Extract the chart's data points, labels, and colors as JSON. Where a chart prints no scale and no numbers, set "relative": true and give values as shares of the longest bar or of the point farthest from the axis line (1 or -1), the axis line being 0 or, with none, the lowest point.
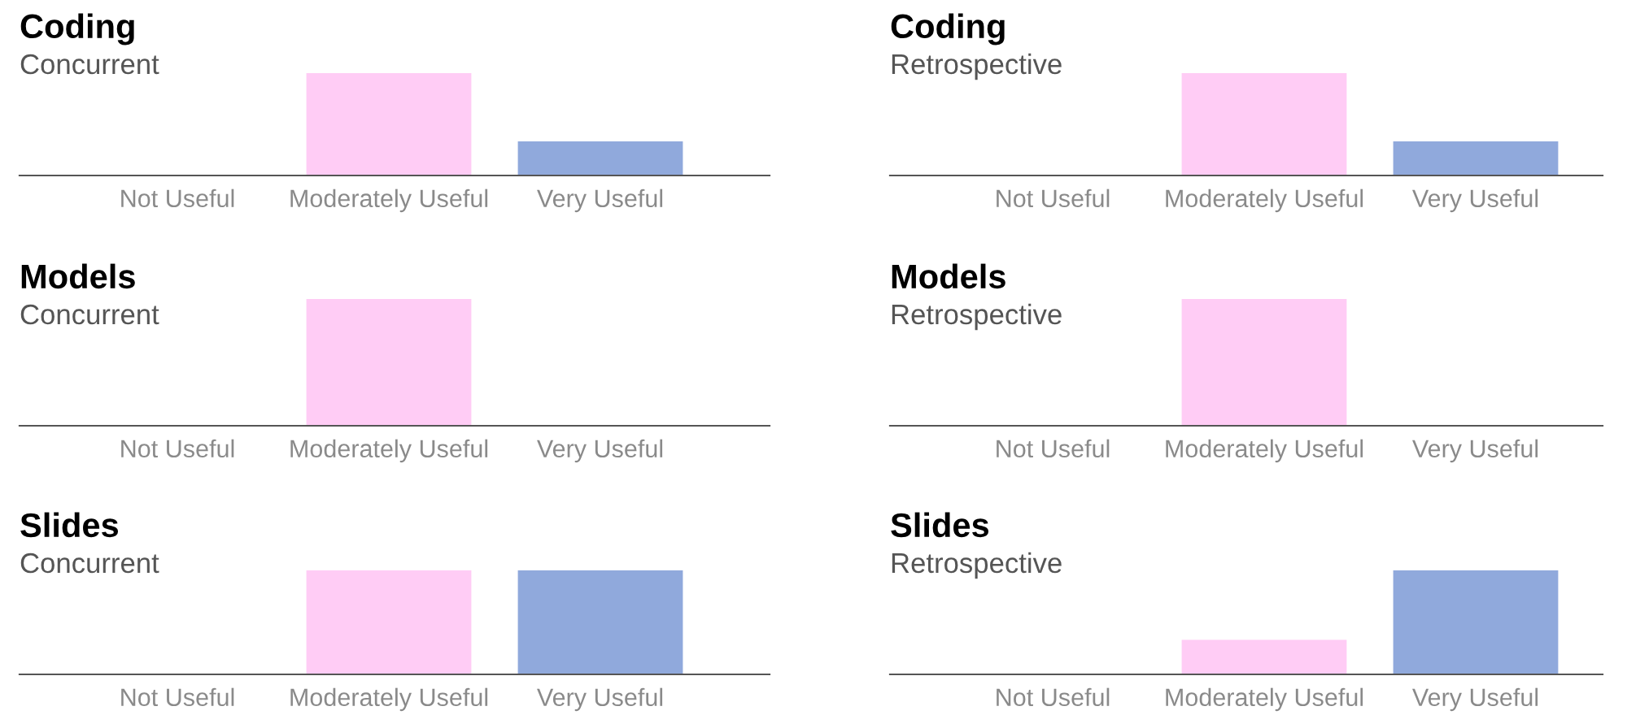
{
  "chart_data": [
    {
      "type": "bar",
      "title": "Coding",
      "subtitle": "Concurrent",
      "categories": [
        "Not Useful",
        "Moderately Useful",
        "Very Useful"
      ],
      "values": [
        null,
        1,
        0.333
      ],
      "colors": [
        "#ffccf5",
        "#ffccf5",
        "#90a9dc"
      ],
      "relative": true
    },
    {
      "type": "bar",
      "title": "Coding",
      "subtitle": "Retrospective",
      "categories": [
        "Not Useful",
        "Moderately Useful",
        "Very Useful"
      ],
      "values": [
        null,
        1,
        0.333
      ],
      "colors": [
        "#ffccf5",
        "#ffccf5",
        "#90a9dc"
      ],
      "relative": true
    },
    {
      "type": "bar",
      "title": "Models",
      "subtitle": "Concurrent",
      "categories": [
        "Not Useful",
        "Moderately Useful",
        "Very Useful"
      ],
      "values": [
        null,
        1,
        null
      ],
      "colors": [
        "#ffccf5",
        "#ffccf5",
        "#90a9dc"
      ],
      "relative": true
    },
    {
      "type": "bar",
      "title": "Models",
      "subtitle": "Retrospective",
      "categories": [
        "Not Useful",
        "Moderately Useful",
        "Very Useful"
      ],
      "values": [
        null,
        1,
        null
      ],
      "colors": [
        "#ffccf5",
        "#ffccf5",
        "#90a9dc"
      ],
      "relative": true
    },
    {
      "type": "bar",
      "title": "Slides",
      "subtitle": "Concurrent",
      "categories": [
        "Not Useful",
        "Moderately Useful",
        "Very Useful"
      ],
      "values": [
        null,
        1,
        1
      ],
      "colors": [
        "#ffccf5",
        "#ffccf5",
        "#90a9dc"
      ],
      "relative": true
    },
    {
      "type": "bar",
      "title": "Slides",
      "subtitle": "Retrospective",
      "categories": [
        "Not Useful",
        "Moderately Useful",
        "Very Useful"
      ],
      "values": [
        null,
        0.333,
        1
      ],
      "colors": [
        "#ffccf5",
        "#ffccf5",
        "#90a9dc"
      ],
      "relative": true
    }
  ]
}
